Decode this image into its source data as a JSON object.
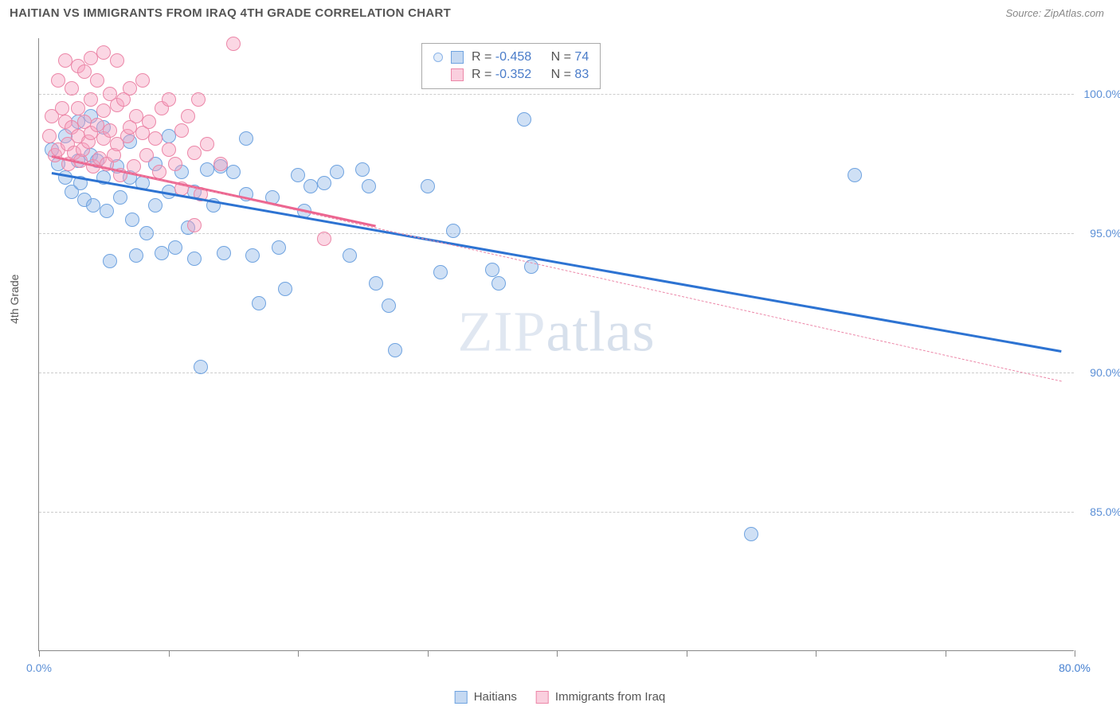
{
  "title": "HAITIAN VS IMMIGRANTS FROM IRAQ 4TH GRADE CORRELATION CHART",
  "source": "Source: ZipAtlas.com",
  "ylabel": "4th Grade",
  "watermark": "ZIPatlas",
  "chart": {
    "type": "scatter",
    "xlim": [
      0,
      80
    ],
    "ylim": [
      80,
      102
    ],
    "xticks": [
      0,
      10,
      20,
      30,
      40,
      50,
      60,
      70,
      80
    ],
    "xtick_labels": {
      "0": "0.0%",
      "80": "80.0%"
    },
    "yticks": [
      85,
      90,
      95,
      100
    ],
    "ytick_labels": [
      "85.0%",
      "90.0%",
      "95.0%",
      "100.0%"
    ],
    "grid_color": "#cccccc",
    "background": "#ffffff",
    "marker_radius": 9,
    "marker_opacity": 0.45
  },
  "series": [
    {
      "name": "Haitians",
      "color": "#6fa3e0",
      "fill": "rgba(140,180,230,0.42)",
      "stroke": "#6fa3e0",
      "R": "-0.458",
      "N": "74",
      "trend": {
        "x1": 1,
        "y1": 97.2,
        "x2": 79,
        "y2": 90.8,
        "width": 2.5,
        "dash": "none",
        "color": "#2d73d2"
      },
      "points": [
        [
          1,
          98
        ],
        [
          1.5,
          97.5
        ],
        [
          2,
          98.5
        ],
        [
          2,
          97
        ],
        [
          2.5,
          96.5
        ],
        [
          3,
          99
        ],
        [
          3,
          97.6
        ],
        [
          3.2,
          96.8
        ],
        [
          3.5,
          96.2
        ],
        [
          4,
          99.2
        ],
        [
          4,
          97.8
        ],
        [
          4.2,
          96
        ],
        [
          4.5,
          97.6
        ],
        [
          5,
          98.8
        ],
        [
          5,
          97
        ],
        [
          5.2,
          95.8
        ],
        [
          5.5,
          94
        ],
        [
          6,
          97.4
        ],
        [
          6.3,
          96.3
        ],
        [
          7,
          98.3
        ],
        [
          7,
          97
        ],
        [
          7.2,
          95.5
        ],
        [
          7.5,
          94.2
        ],
        [
          8,
          96.8
        ],
        [
          8.3,
          95
        ],
        [
          9,
          97.5
        ],
        [
          9,
          96
        ],
        [
          9.5,
          94.3
        ],
        [
          10,
          98.5
        ],
        [
          10,
          96.5
        ],
        [
          10.5,
          94.5
        ],
        [
          11,
          97.2
        ],
        [
          11.5,
          95.2
        ],
        [
          12,
          96.5
        ],
        [
          12,
          94.1
        ],
        [
          12.5,
          90.2
        ],
        [
          13,
          97.3
        ],
        [
          13.5,
          96
        ],
        [
          14,
          97.4
        ],
        [
          14.3,
          94.3
        ],
        [
          15,
          97.2
        ],
        [
          16,
          98.4
        ],
        [
          16,
          96.4
        ],
        [
          16.5,
          94.2
        ],
        [
          17,
          92.5
        ],
        [
          18,
          96.3
        ],
        [
          18.5,
          94.5
        ],
        [
          19,
          93
        ],
        [
          20,
          97.1
        ],
        [
          20.5,
          95.8
        ],
        [
          21,
          96.7
        ],
        [
          22,
          96.8
        ],
        [
          23,
          97.2
        ],
        [
          24,
          94.2
        ],
        [
          25,
          97.3
        ],
        [
          25.5,
          96.7
        ],
        [
          26,
          93.2
        ],
        [
          27,
          92.4
        ],
        [
          27.5,
          90.8
        ],
        [
          30,
          96.7
        ],
        [
          31,
          93.6
        ],
        [
          32,
          95.1
        ],
        [
          35,
          93.7
        ],
        [
          35.5,
          93.2
        ],
        [
          37.5,
          99.1
        ],
        [
          38,
          93.8
        ],
        [
          55,
          84.2
        ],
        [
          63,
          97.1
        ]
      ]
    },
    {
      "name": "Immigrants from Iraq",
      "color": "#f199b7",
      "fill": "rgba(245,160,190,0.42)",
      "stroke": "#ec87a8",
      "R": "-0.352",
      "N": "83",
      "trend": {
        "x1": 1,
        "y1": 97.8,
        "x2": 79,
        "y2": 89.7,
        "width": 1.2,
        "dash": "4,4",
        "color": "#ec87a8"
      },
      "trend_solid": {
        "x1": 1,
        "y1": 97.8,
        "x2": 26,
        "y2": 95.3,
        "width": 2.5,
        "color": "#ec648f"
      },
      "points": [
        [
          0.8,
          98.5
        ],
        [
          1,
          99.2
        ],
        [
          1.2,
          97.8
        ],
        [
          1.5,
          100.5
        ],
        [
          1.5,
          98
        ],
        [
          1.8,
          99.5
        ],
        [
          2,
          101.2
        ],
        [
          2,
          99
        ],
        [
          2.2,
          98.2
        ],
        [
          2.3,
          97.5
        ],
        [
          2.5,
          100.2
        ],
        [
          2.5,
          98.8
        ],
        [
          2.7,
          97.9
        ],
        [
          3,
          101
        ],
        [
          3,
          99.5
        ],
        [
          3,
          98.5
        ],
        [
          3.2,
          97.6
        ],
        [
          3.4,
          98
        ],
        [
          3.5,
          100.8
        ],
        [
          3.5,
          99
        ],
        [
          3.8,
          98.3
        ],
        [
          4,
          101.3
        ],
        [
          4,
          99.8
        ],
        [
          4,
          98.6
        ],
        [
          4.2,
          97.4
        ],
        [
          4.5,
          100.5
        ],
        [
          4.5,
          98.9
        ],
        [
          4.7,
          97.7
        ],
        [
          5,
          101.5
        ],
        [
          5,
          99.4
        ],
        [
          5,
          98.4
        ],
        [
          5.2,
          97.5
        ],
        [
          5.5,
          100
        ],
        [
          5.5,
          98.7
        ],
        [
          5.8,
          97.8
        ],
        [
          6,
          101.2
        ],
        [
          6,
          99.6
        ],
        [
          6,
          98.2
        ],
        [
          6.3,
          97.1
        ],
        [
          6.5,
          99.8
        ],
        [
          6.8,
          98.5
        ],
        [
          7,
          100.2
        ],
        [
          7,
          98.8
        ],
        [
          7.3,
          97.4
        ],
        [
          7.5,
          99.2
        ],
        [
          8,
          98.6
        ],
        [
          8,
          100.5
        ],
        [
          8.3,
          97.8
        ],
        [
          8.5,
          99
        ],
        [
          9,
          98.4
        ],
        [
          9.3,
          97.2
        ],
        [
          9.5,
          99.5
        ],
        [
          10,
          98
        ],
        [
          10,
          99.8
        ],
        [
          10.5,
          97.5
        ],
        [
          11,
          98.7
        ],
        [
          11,
          96.6
        ],
        [
          11.5,
          99.2
        ],
        [
          12,
          97.9
        ],
        [
          12,
          95.3
        ],
        [
          12.3,
          99.8
        ],
        [
          12.5,
          96.4
        ],
        [
          13,
          98.2
        ],
        [
          14,
          97.5
        ],
        [
          15,
          101.8
        ],
        [
          22,
          94.8
        ]
      ]
    }
  ],
  "stats_legend": {
    "rows": [
      {
        "swatch_fill": "rgba(140,180,230,0.5)",
        "swatch_border": "#6fa3e0",
        "R": "-0.458",
        "N": "74"
      },
      {
        "swatch_fill": "rgba(245,160,190,0.5)",
        "swatch_border": "#ec87a8",
        "R": "-0.352",
        "N": "83"
      }
    ]
  },
  "bottom_legend": [
    {
      "label": "Haitians",
      "fill": "rgba(140,180,230,0.5)",
      "border": "#6fa3e0"
    },
    {
      "label": "Immigrants from Iraq",
      "fill": "rgba(245,160,190,0.5)",
      "border": "#ec87a8"
    }
  ]
}
